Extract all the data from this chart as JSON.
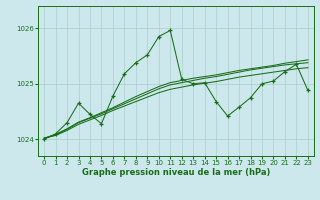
{
  "xlabel": "Graphe pression niveau de la mer (hPa)",
  "bg_color": "#cce8ec",
  "grid_color": "#aacccc",
  "line_color": "#1a6e1a",
  "x_ticks": [
    0,
    1,
    2,
    3,
    4,
    5,
    6,
    7,
    8,
    9,
    10,
    11,
    12,
    13,
    14,
    15,
    16,
    17,
    18,
    19,
    20,
    21,
    22,
    23
  ],
  "y_ticks": [
    1024,
    1025,
    1026
  ],
  "ylim": [
    1023.7,
    1026.4
  ],
  "xlim": [
    -0.5,
    23.5
  ],
  "main_line": [
    1024.0,
    1024.1,
    1024.3,
    1024.65,
    1024.45,
    1024.28,
    1024.78,
    1025.18,
    1025.38,
    1025.52,
    1025.85,
    1025.96,
    1025.08,
    1025.0,
    1025.02,
    1024.68,
    1024.42,
    1024.58,
    1024.75,
    1025.0,
    1025.05,
    1025.22,
    1025.35,
    1024.88
  ],
  "smooth1": [
    1024.02,
    1024.08,
    1024.18,
    1024.3,
    1024.38,
    1024.46,
    1024.55,
    1024.64,
    1024.73,
    1024.82,
    1024.91,
    1024.98,
    1025.02,
    1025.06,
    1025.1,
    1025.13,
    1025.17,
    1025.21,
    1025.25,
    1025.28,
    1025.31,
    1025.34,
    1025.36,
    1025.38
  ],
  "smooth2": [
    1024.02,
    1024.09,
    1024.19,
    1024.31,
    1024.39,
    1024.48,
    1024.57,
    1024.67,
    1024.77,
    1024.86,
    1024.95,
    1025.02,
    1025.06,
    1025.1,
    1025.13,
    1025.16,
    1025.2,
    1025.24,
    1025.27,
    1025.3,
    1025.33,
    1025.37,
    1025.4,
    1025.43
  ],
  "smooth3": [
    1024.02,
    1024.07,
    1024.16,
    1024.27,
    1024.35,
    1024.43,
    1024.52,
    1024.6,
    1024.68,
    1024.76,
    1024.84,
    1024.9,
    1024.94,
    1024.98,
    1025.01,
    1025.04,
    1025.08,
    1025.12,
    1025.15,
    1025.18,
    1025.21,
    1025.24,
    1025.27,
    1025.29
  ]
}
